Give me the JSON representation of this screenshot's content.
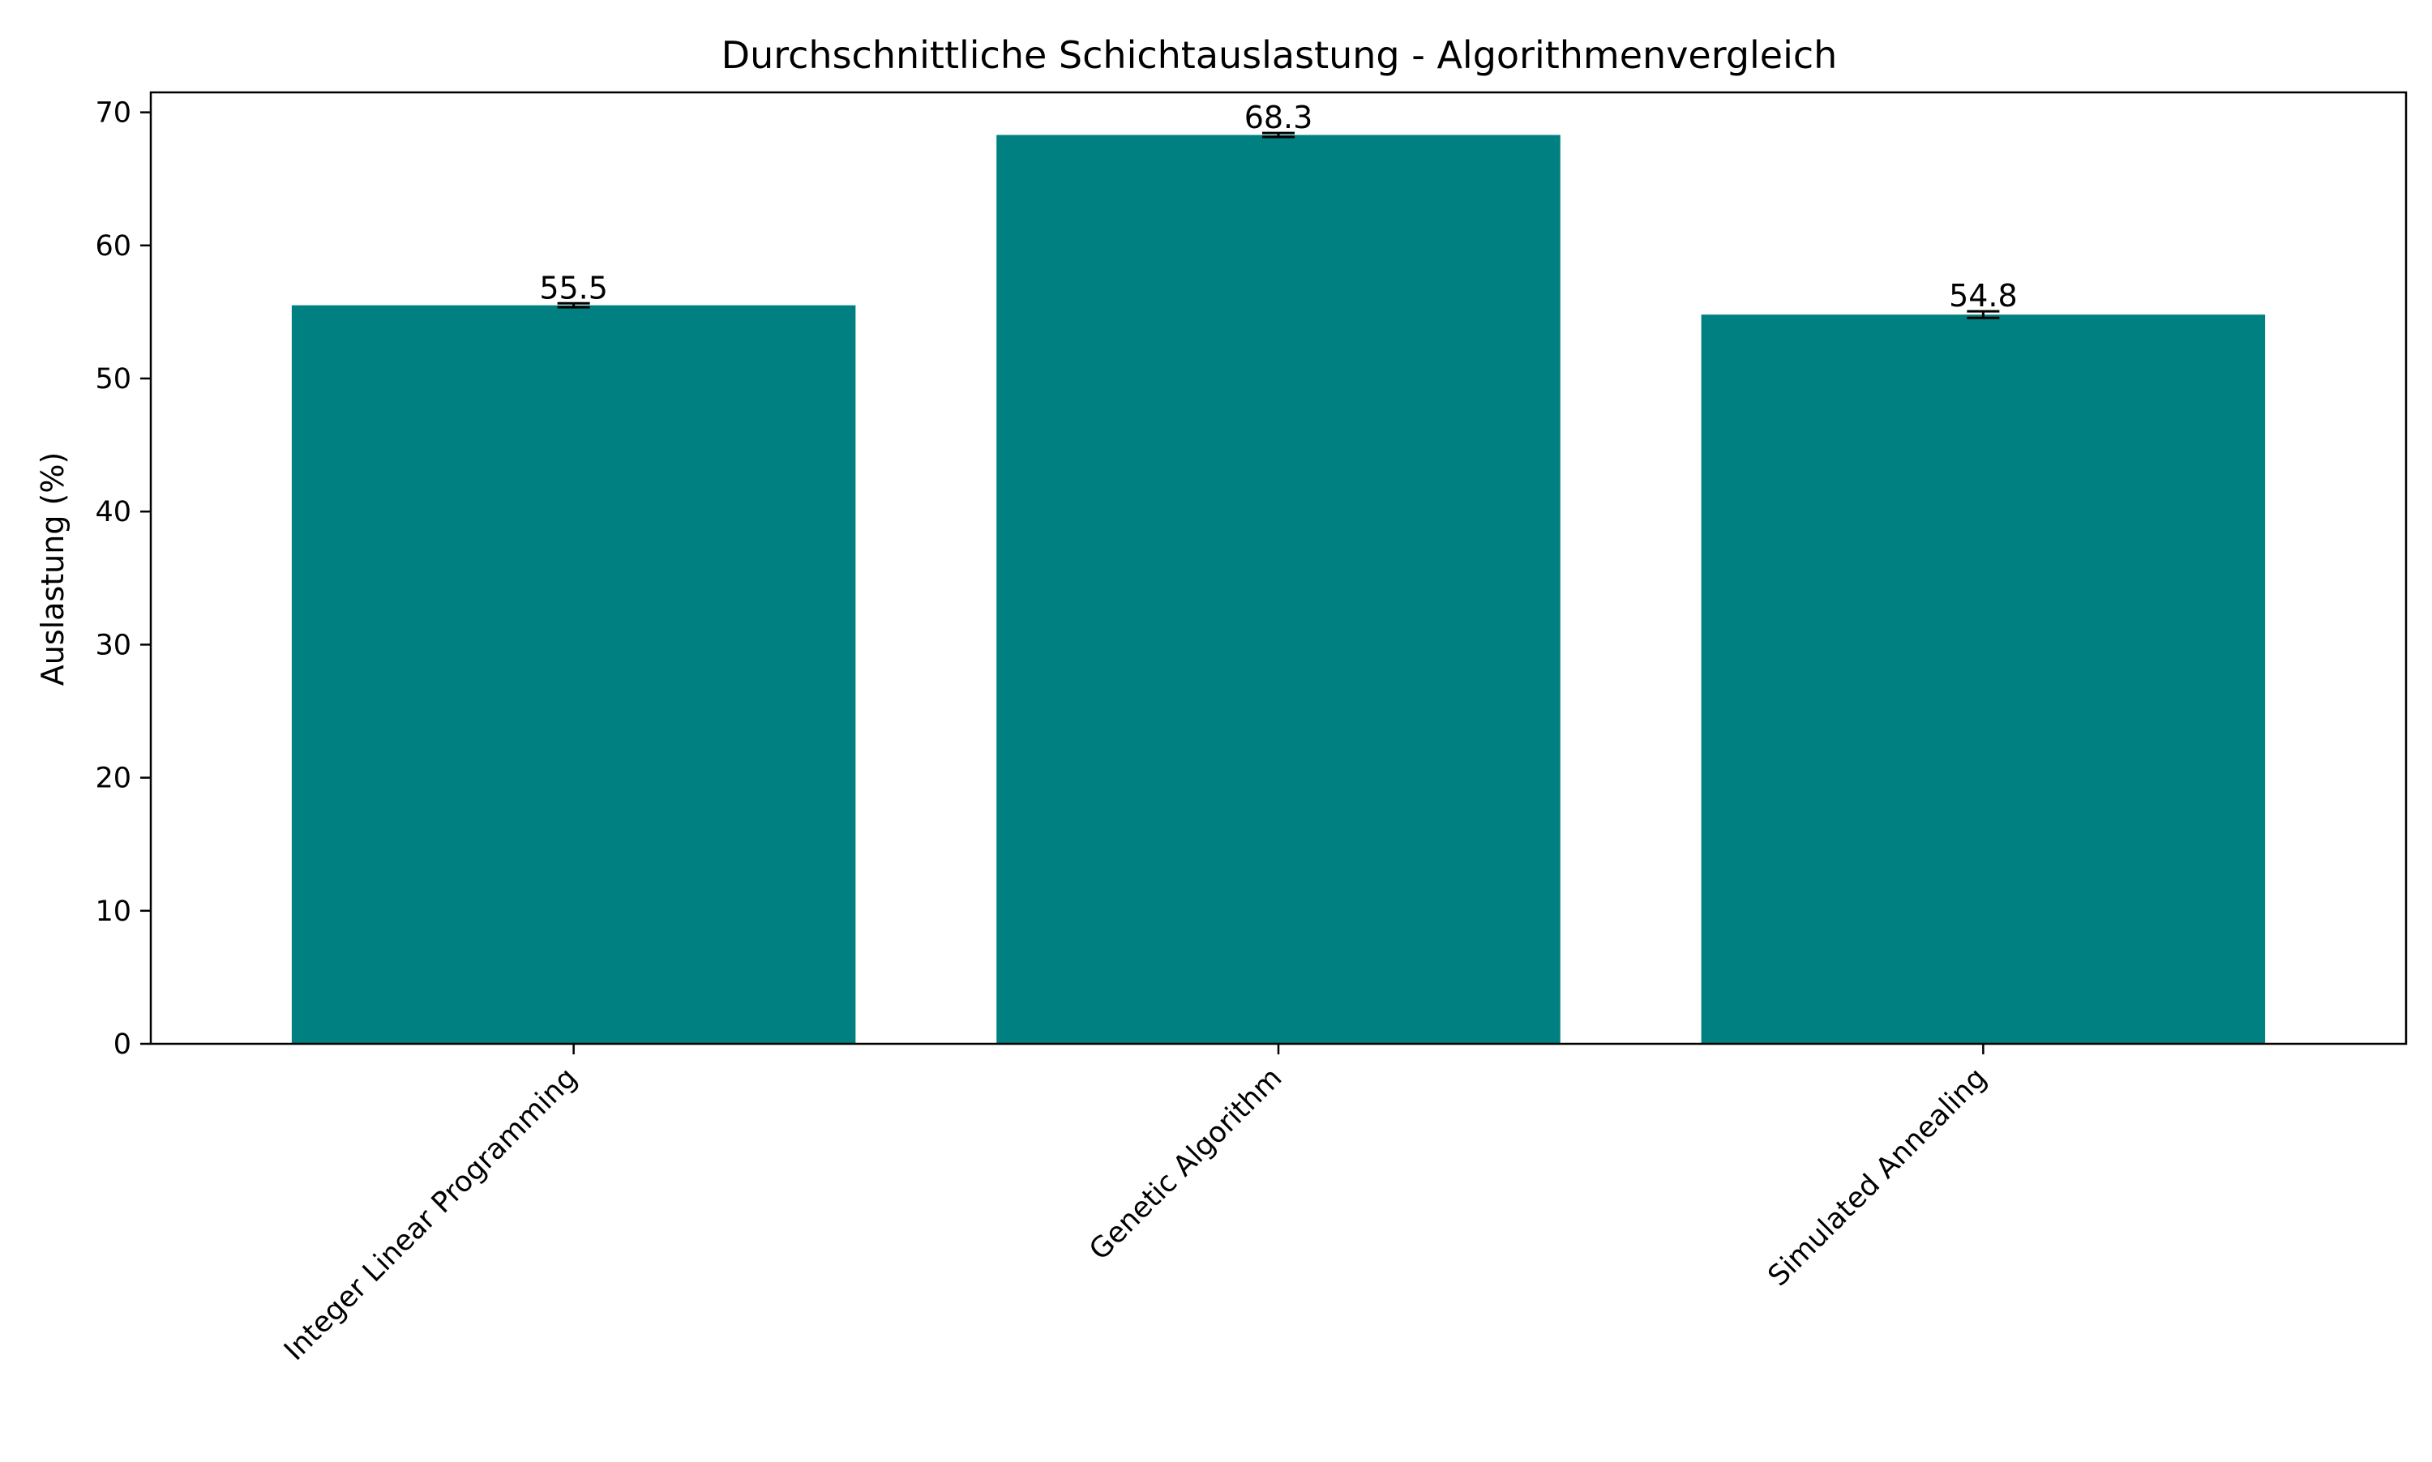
{
  "chart_data": {
    "type": "bar",
    "title": "Durchschnittliche Schichtauslastung - Algorithmenvergleich",
    "xlabel": "",
    "ylabel": "Auslastung (%)",
    "categories": [
      "Integer Linear Programming",
      "Genetic Algorithm",
      "Simulated Annealing"
    ],
    "values": [
      55.5,
      68.3,
      54.8
    ],
    "value_labels": [
      "55.5",
      "68.3",
      "54.8"
    ],
    "errors": [
      0.15,
      0.15,
      0.25
    ],
    "ylim": [
      0,
      71.5
    ],
    "yticks": [
      0,
      10,
      20,
      30,
      40,
      50,
      60,
      70
    ],
    "ytick_labels": [
      "0",
      "10",
      "20",
      "30",
      "40",
      "50",
      "60",
      "70"
    ],
    "grid": false,
    "colors": {
      "bar": "#008080",
      "axis": "#000000",
      "errorbar": "#000000"
    }
  }
}
